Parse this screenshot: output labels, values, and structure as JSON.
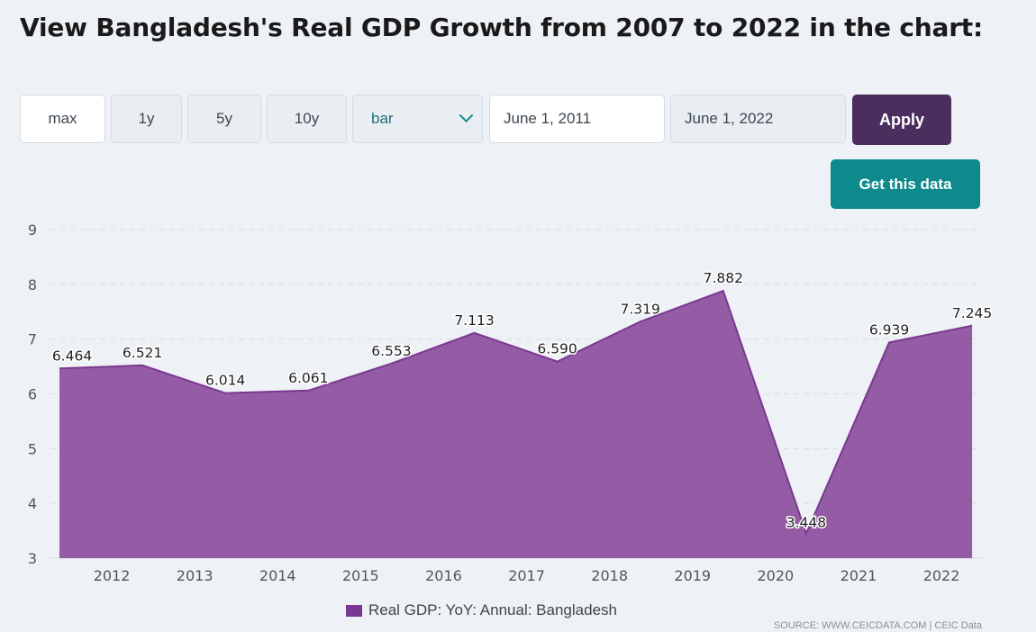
{
  "title": "View Bangladesh's Real GDP Growth from 2007 to 2022 in the chart:",
  "controls": {
    "range_buttons": [
      "max",
      "1y",
      "5y",
      "10y"
    ],
    "chart_type": "bar",
    "start_date": "June 1, 2011",
    "end_date": "June 1, 2022",
    "apply_label": "Apply",
    "get_data_label": "Get this data"
  },
  "legend_label": "Real GDP: YoY: Annual: Bangladesh",
  "source": "SOURCE: WWW.CEICDATA.COM | CEIC Data",
  "colors": {
    "fill": "#8c4f9c",
    "line": "#7b3891",
    "apply": "#4a2e5e",
    "get_data": "#0e8a8c"
  },
  "chart_data": {
    "type": "area",
    "categories": [
      "2012",
      "2013",
      "2014",
      "2015",
      "2016",
      "2017",
      "2018",
      "2019",
      "2020",
      "2021",
      "2022"
    ],
    "series": [
      {
        "name": "Real GDP: YoY: Annual: Bangladesh",
        "x": [
          "2011",
          "2012",
          "2013",
          "2014",
          "2015",
          "2016",
          "2017",
          "2018",
          "2019",
          "2020",
          "2021",
          "2022"
        ],
        "values": [
          6.464,
          6.521,
          6.014,
          6.061,
          6.553,
          7.113,
          6.59,
          7.319,
          7.882,
          3.448,
          6.939,
          7.245
        ],
        "labels": [
          "6.464",
          "6.521",
          "6.014",
          "6.061",
          "6.553",
          "7.113",
          "6.590",
          "7.319",
          "7.882",
          "3.448",
          "6.939",
          "7.245"
        ]
      }
    ],
    "yticks": [
      "3",
      "4",
      "5",
      "6",
      "7",
      "8",
      "9"
    ],
    "ylim": [
      3,
      9
    ],
    "grid": true,
    "legend": "bottom-center"
  }
}
